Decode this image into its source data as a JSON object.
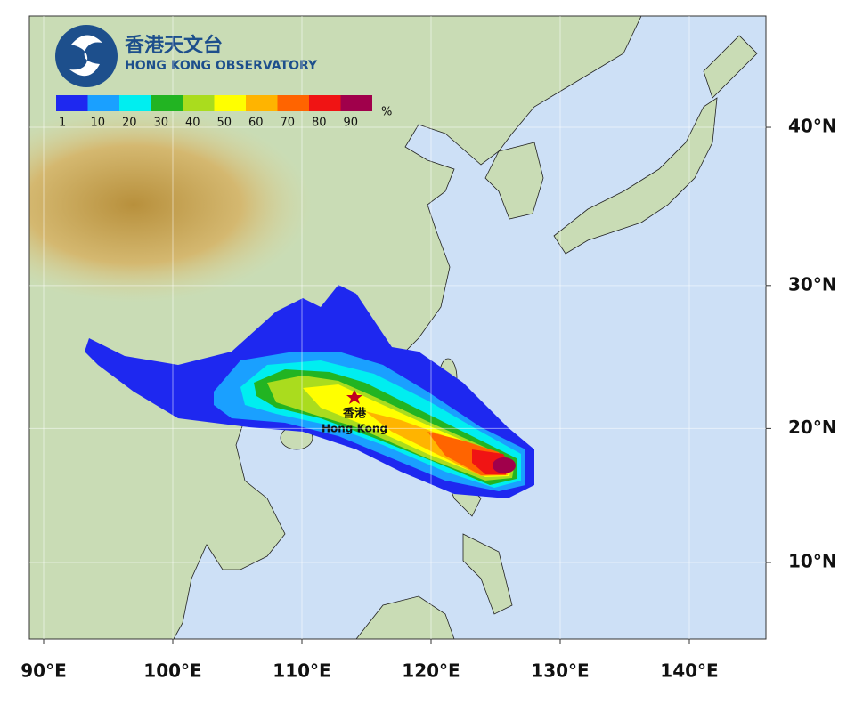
{
  "header": {
    "title_zh": "香港天文台",
    "title_en": "HONG KONG OBSERVATORY"
  },
  "legend": {
    "ticks": [
      1,
      10,
      20,
      30,
      40,
      50,
      60,
      70,
      80,
      90
    ],
    "unit": "%",
    "colors": [
      "#1e28f0",
      "#1aa0ff",
      "#00eef0",
      "#22b422",
      "#aadc1e",
      "#ffff00",
      "#ffb400",
      "#ff6400",
      "#f01414",
      "#a0004b"
    ]
  },
  "map": {
    "xticks": [
      {
        "value": 90,
        "label": "90°E"
      },
      {
        "value": 100,
        "label": "100°E"
      },
      {
        "value": 110,
        "label": "110°E"
      },
      {
        "value": 120,
        "label": "120°E"
      },
      {
        "value": 130,
        "label": "130°E"
      },
      {
        "value": 140,
        "label": "140°E"
      }
    ],
    "yticks": [
      {
        "value": 10,
        "label": "10°N"
      },
      {
        "value": 20,
        "label": "20°N"
      },
      {
        "value": 30,
        "label": "30°N"
      },
      {
        "value": 40,
        "label": "40°N"
      }
    ]
  },
  "labels": {
    "hk_zh": "香港",
    "hk_en": "Hong Kong"
  }
}
